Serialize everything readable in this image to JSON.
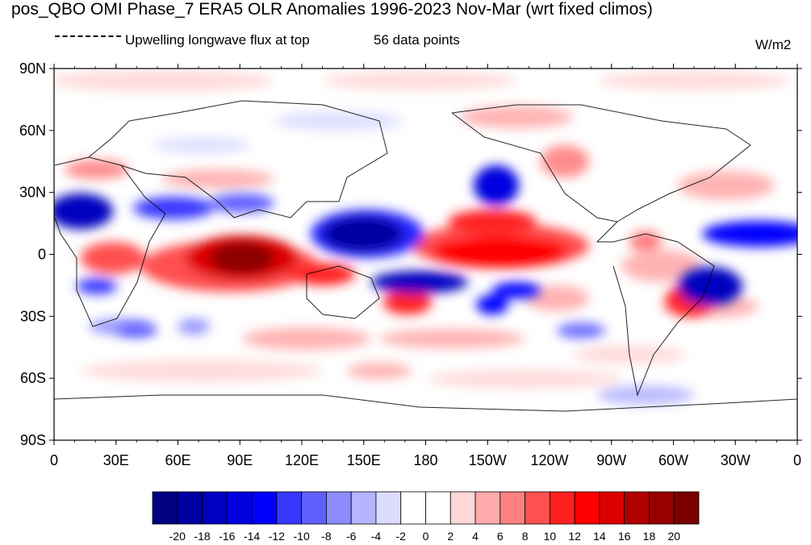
{
  "title": "pos_QBO OMI Phase_7 ERA5 OLR Anomalies 1996-2023 Nov-Mar (wrt fixed climos)",
  "legend_label": "Upwelling longwave flux at top",
  "data_points": "56 data points",
  "units": "W/m2",
  "y_ticks": [
    "90N",
    "60N",
    "30N",
    "0",
    "30S",
    "60S",
    "90S"
  ],
  "x_ticks": [
    "0",
    "30E",
    "60E",
    "90E",
    "120E",
    "150E",
    "180",
    "150W",
    "120W",
    "90W",
    "60W",
    "30W",
    "0"
  ],
  "colorbar": {
    "labels": [
      "-20",
      "-18",
      "-16",
      "-14",
      "-12",
      "-10",
      "-8",
      "-6",
      "-4",
      "-2",
      "0",
      "2",
      "4",
      "6",
      "8",
      "10",
      "12",
      "14",
      "16",
      "18",
      "20"
    ],
    "colors": [
      "#000080",
      "#0000a0",
      "#0000c0",
      "#0000e0",
      "#0000ff",
      "#3838ff",
      "#6060ff",
      "#8c8cff",
      "#b4b4ff",
      "#dcdcff",
      "#ffffff",
      "#ffffff",
      "#ffd8d8",
      "#ffaaaa",
      "#ff8080",
      "#ff5050",
      "#ff2020",
      "#ff0000",
      "#dd0000",
      "#b00000",
      "#960000",
      "#7a0000"
    ]
  },
  "colors": {
    "pos_strong": "#8c0000",
    "pos_mid": "#e00000",
    "pos_light": "#ff9a9a",
    "pos_faint": "#ffd8d8",
    "neg_strong": "#0000a0",
    "neg_mid": "#2828ff",
    "neg_light": "#9a9aff",
    "neg_faint": "#dcdcff"
  }
}
